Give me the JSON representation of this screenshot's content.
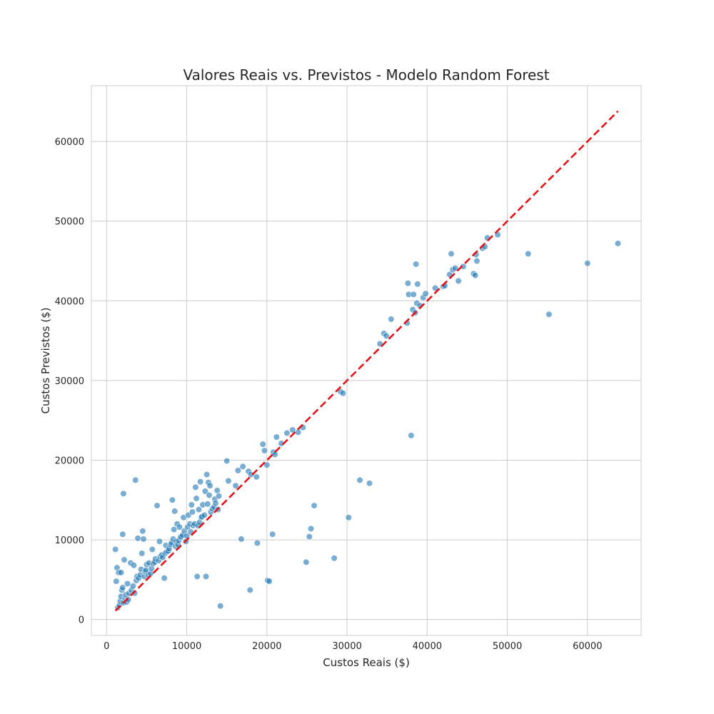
{
  "chart_data": {
    "type": "scatter",
    "title": "Valores Reais vs. Previstos - Modelo Random Forest",
    "xlabel": "Custos Reais ($)",
    "ylabel": "Custos Previstos ($)",
    "xlim": [
      -1900,
      66700
    ],
    "ylim": [
      -2000,
      67000
    ],
    "xticks": [
      0,
      10000,
      20000,
      30000,
      40000,
      50000,
      60000
    ],
    "yticks": [
      0,
      10000,
      20000,
      30000,
      40000,
      50000,
      60000
    ],
    "xtick_labels": [
      "0",
      "10000",
      "20000",
      "30000",
      "40000",
      "50000",
      "60000"
    ],
    "ytick_labels": [
      "0",
      "10000",
      "20000",
      "30000",
      "40000",
      "50000",
      "60000"
    ],
    "grid": true,
    "colors": {
      "points": "#1f77b4",
      "reference_line": "#e5141a",
      "grid": "#cccccc"
    },
    "reference_line": {
      "style": "dashed",
      "x": [
        1100,
        63800
      ],
      "y": [
        1100,
        63800
      ]
    },
    "points": [
      [
        1100,
        8800
      ],
      [
        1300,
        6500
      ],
      [
        1500,
        5900
      ],
      [
        1800,
        5900
      ],
      [
        2000,
        10700
      ],
      [
        2100,
        15800
      ],
      [
        1200,
        4800
      ],
      [
        1400,
        1500
      ],
      [
        1600,
        1800
      ],
      [
        1700,
        2300
      ],
      [
        1800,
        2900
      ],
      [
        1900,
        3700
      ],
      [
        2000,
        4000
      ],
      [
        2200,
        7500
      ],
      [
        2100,
        2100
      ],
      [
        2300,
        2600
      ],
      [
        2400,
        3100
      ],
      [
        2500,
        2200
      ],
      [
        2700,
        2500
      ],
      [
        2600,
        4500
      ],
      [
        2800,
        3300
      ],
      [
        3000,
        7100
      ],
      [
        3100,
        3700
      ],
      [
        3300,
        4200
      ],
      [
        3500,
        3300
      ],
      [
        3600,
        17500
      ],
      [
        3700,
        4900
      ],
      [
        3400,
        6800
      ],
      [
        3800,
        5400
      ],
      [
        3900,
        10200
      ],
      [
        4000,
        5200
      ],
      [
        4200,
        5600
      ],
      [
        4300,
        6300
      ],
      [
        4400,
        8300
      ],
      [
        4500,
        11100
      ],
      [
        4600,
        10100
      ],
      [
        4700,
        5400
      ],
      [
        4800,
        6000
      ],
      [
        4900,
        6200
      ],
      [
        5000,
        6900
      ],
      [
        5200,
        5600
      ],
      [
        5300,
        7100
      ],
      [
        5500,
        5800
      ],
      [
        5600,
        6400
      ],
      [
        5700,
        8800
      ],
      [
        5800,
        7000
      ],
      [
        6000,
        7200
      ],
      [
        6100,
        7600
      ],
      [
        6300,
        14300
      ],
      [
        6500,
        7400
      ],
      [
        6600,
        9800
      ],
      [
        6700,
        7900
      ],
      [
        6900,
        8100
      ],
      [
        7000,
        7800
      ],
      [
        7200,
        5200
      ],
      [
        7300,
        8300
      ],
      [
        7400,
        9300
      ],
      [
        7500,
        8500
      ],
      [
        7700,
        8600
      ],
      [
        7800,
        8900
      ],
      [
        8000,
        9400
      ],
      [
        8100,
        9600
      ],
      [
        8200,
        15000
      ],
      [
        8300,
        10100
      ],
      [
        8400,
        11300
      ],
      [
        8500,
        13600
      ],
      [
        8600,
        9200
      ],
      [
        8700,
        9800
      ],
      [
        8800,
        12000
      ],
      [
        8900,
        9400
      ],
      [
        9000,
        9900
      ],
      [
        9100,
        11600
      ],
      [
        9200,
        10300
      ],
      [
        9300,
        10400
      ],
      [
        9500,
        10600
      ],
      [
        9600,
        12800
      ],
      [
        9700,
        11100
      ],
      [
        9900,
        9800
      ],
      [
        10000,
        10500
      ],
      [
        10100,
        11600
      ],
      [
        10200,
        13100
      ],
      [
        10400,
        12000
      ],
      [
        10500,
        11000
      ],
      [
        10600,
        14400
      ],
      [
        10700,
        13500
      ],
      [
        10800,
        11800
      ],
      [
        11000,
        12000
      ],
      [
        11100,
        16600
      ],
      [
        11200,
        15200
      ],
      [
        11300,
        5400
      ],
      [
        11400,
        11800
      ],
      [
        11500,
        13800
      ],
      [
        11600,
        12200
      ],
      [
        11700,
        17300
      ],
      [
        11800,
        12800
      ],
      [
        11900,
        12900
      ],
      [
        12000,
        14400
      ],
      [
        12200,
        13100
      ],
      [
        12300,
        16100
      ],
      [
        12400,
        5400
      ],
      [
        12500,
        18200
      ],
      [
        12600,
        14500
      ],
      [
        12700,
        17200
      ],
      [
        12800,
        15600
      ],
      [
        12900,
        16800
      ],
      [
        13000,
        13500
      ],
      [
        13200,
        13900
      ],
      [
        13400,
        14100
      ],
      [
        13500,
        15100
      ],
      [
        13600,
        14600
      ],
      [
        13800,
        16200
      ],
      [
        13900,
        13800
      ],
      [
        14000,
        15500
      ],
      [
        14200,
        1700
      ],
      [
        15000,
        19900
      ],
      [
        15200,
        17400
      ],
      [
        16100,
        16800
      ],
      [
        16400,
        18700
      ],
      [
        16800,
        10100
      ],
      [
        17000,
        19200
      ],
      [
        17700,
        18600
      ],
      [
        17900,
        3700
      ],
      [
        18000,
        18200
      ],
      [
        18700,
        17900
      ],
      [
        18800,
        9600
      ],
      [
        19500,
        22000
      ],
      [
        19700,
        21200
      ],
      [
        20000,
        19400
      ],
      [
        20100,
        4900
      ],
      [
        20300,
        4800
      ],
      [
        20700,
        10700
      ],
      [
        20800,
        21000
      ],
      [
        21000,
        20700
      ],
      [
        21200,
        22900
      ],
      [
        21800,
        22100
      ],
      [
        22500,
        23400
      ],
      [
        23200,
        23800
      ],
      [
        23900,
        23500
      ],
      [
        24500,
        24100
      ],
      [
        24900,
        7200
      ],
      [
        25300,
        10400
      ],
      [
        25500,
        11400
      ],
      [
        25900,
        14300
      ],
      [
        28400,
        7700
      ],
      [
        29200,
        28600
      ],
      [
        29500,
        28400
      ],
      [
        30200,
        12800
      ],
      [
        31600,
        17500
      ],
      [
        32800,
        17100
      ],
      [
        34100,
        34600
      ],
      [
        34600,
        35900
      ],
      [
        34900,
        35600
      ],
      [
        35500,
        37700
      ],
      [
        37500,
        37200
      ],
      [
        37600,
        42200
      ],
      [
        37700,
        40800
      ],
      [
        38000,
        23100
      ],
      [
        38200,
        38900
      ],
      [
        38300,
        40800
      ],
      [
        38500,
        38500
      ],
      [
        38600,
        44600
      ],
      [
        38700,
        39700
      ],
      [
        38800,
        42100
      ],
      [
        39100,
        39400
      ],
      [
        39500,
        40400
      ],
      [
        39800,
        40900
      ],
      [
        41000,
        41600
      ],
      [
        42000,
        41800
      ],
      [
        42200,
        41900
      ],
      [
        42800,
        43300
      ],
      [
        43000,
        45900
      ],
      [
        43200,
        43900
      ],
      [
        43500,
        44100
      ],
      [
        43900,
        42500
      ],
      [
        44500,
        44300
      ],
      [
        45800,
        43400
      ],
      [
        46000,
        43200
      ],
      [
        46100,
        45800
      ],
      [
        46200,
        45000
      ],
      [
        46900,
        46600
      ],
      [
        47200,
        46800
      ],
      [
        47500,
        47900
      ],
      [
        48800,
        48300
      ],
      [
        52600,
        45900
      ],
      [
        55200,
        38300
      ],
      [
        60000,
        44700
      ],
      [
        63800,
        47200
      ]
    ]
  }
}
